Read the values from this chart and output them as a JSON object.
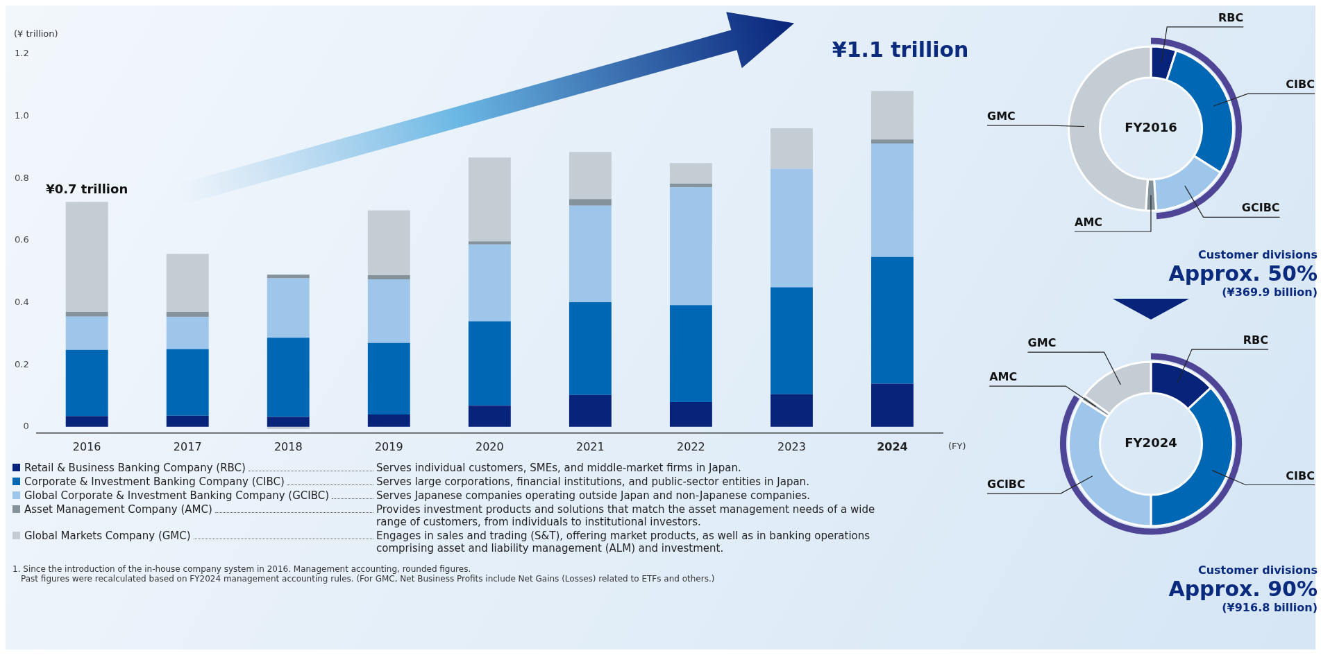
{
  "chart_data": [
    {
      "type": "bar",
      "stacked": true,
      "ylabel": "(¥ trillion)",
      "xlabel": "(FY)",
      "legend": "bottom",
      "categories": [
        "2016",
        "2017",
        "2018",
        "2019",
        "2020",
        "2021",
        "2022",
        "2023",
        "2024"
      ],
      "series": [
        {
          "name": "Retail & Business Banking Company (RBC)",
          "color": "#08237a",
          "values": [
            0.035,
            0.036,
            0.032,
            0.04,
            0.068,
            0.103,
            0.08,
            0.105,
            0.139
          ]
        },
        {
          "name": "Corporate & Investment Banking Company (CIBC)",
          "color": "#0067b5",
          "values": [
            0.213,
            0.214,
            0.255,
            0.23,
            0.272,
            0.298,
            0.312,
            0.344,
            0.408
          ]
        },
        {
          "name": "Global Corporate & Investment Banking Company (GCIBC)",
          "color": "#9dc6ea",
          "values": [
            0.107,
            0.104,
            0.191,
            0.205,
            0.247,
            0.311,
            0.379,
            0.382,
            0.365
          ]
        },
        {
          "name": "Asset Management Company (AMC)",
          "color": "#84939b",
          "values": [
            0.015,
            0.016,
            0.012,
            0.013,
            0.01,
            0.021,
            0.012,
            0,
            0.013
          ]
        },
        {
          "name": "Global Markets Company (GMC)",
          "color": "#c4ccd4",
          "values": [
            0.354,
            0.187,
            -0.007,
            0.209,
            0.27,
            0.152,
            0.066,
            0.13,
            0.156
          ]
        }
      ],
      "ylim": [
        -0.02,
        1.2
      ],
      "yticks": [
        0,
        0.2,
        0.4,
        0.6,
        0.8,
        {
          "value": 1,
          "label": "1.0"
        },
        1.2
      ],
      "annotations": [
        {
          "text": "¥0.7 trillion",
          "x": "2016",
          "y": 0.724
        },
        {
          "text": "¥1.1 trillion",
          "x": "2024",
          "y": 1.081
        },
        "Serves individual customers, SMEs, and middle-market firms in Japan.",
        "Serves large corporations, financial institutions, and public-sector entities in Japan.",
        "Serves Japanese companies operating outside Japan and non-Japanese companies.",
        "Provides investment products and solutions that match the asset management needs of a wide range of customers, from individuals to institutional investors.",
        "Engages in sales and trading (S&T), offering market products, as well as in banking operations comprising asset and liability management (ALM) and investment.",
        "1. Since the introduction of the in-house company system in 2016. Management accounting, rounded figures.",
        "Past figures were recalculated based on FY2024 management accounting rules. (For GMC, Net Business Profits include Net Gains (Losses) related to ETFs and others.)"
      ]
    },
    {
      "type": "donut",
      "title": "FY2016",
      "categories": [
        "RBC",
        "CIBC",
        "GCIBC",
        "AMC",
        "GMC"
      ],
      "values": [
        5,
        29,
        15,
        2,
        49
      ],
      "colors": [
        "#08237a",
        "#0067b5",
        "#9dc6ea",
        "#84939b",
        "#c4ccd4"
      ],
      "annotations": [
        "Customer divisions",
        "Approx. 50%",
        "(¥369.9 billion)"
      ]
    },
    {
      "type": "donut",
      "title": "FY2024",
      "categories": [
        "RBC",
        "CIBC",
        "GCIBC",
        "AMC",
        "GMC"
      ],
      "values": [
        13,
        37,
        34,
        1,
        15
      ],
      "colors": [
        "#08237a",
        "#0067b5",
        "#9dc6ea",
        "#84939b",
        "#c4ccd4"
      ],
      "annotations": [
        "Customer divisions",
        "Approx. 90%",
        "(¥916.8 billion)"
      ]
    }
  ]
}
